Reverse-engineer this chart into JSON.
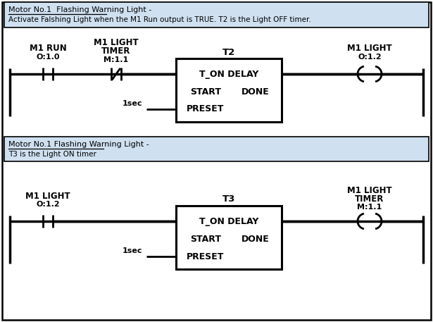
{
  "bg_color": "#ffffff",
  "outer_border_color": "#000000",
  "rung_bg": "#cfe0f0",
  "rung1": {
    "title_line1": "Motor No.1  Flashing Warning Light -",
    "title_line2": "Activate Falshing Light when the M1 Run output is TRUE. T2 is the Light OFF timer.",
    "contact1_top": "M1 RUN",
    "contact1_addr": "O:1.0",
    "contact2_top1": "M1 LIGHT",
    "contact2_top2": "TIMER",
    "contact2_addr": "M:1.1",
    "timer_name": "T2",
    "timer_line1": "T_ON DELAY",
    "timer_line2_left": "START",
    "timer_line2_right": "DONE",
    "timer_line3": "PRESET",
    "preset_label": "1sec",
    "output_top": "M1 LIGHT",
    "output_addr": "O:1.2"
  },
  "rung2": {
    "title_line1": "Motor No.1 Flashing Warning Light -",
    "title_line2": "T3 is the Light ON timer",
    "contact1_top": "M1 LIGHT",
    "contact1_addr": "O:1.2",
    "timer_name": "T3",
    "timer_line1": "T_ON DELAY",
    "timer_line2_left": "START",
    "timer_line2_right": "DONE",
    "timer_line3": "PRESET",
    "preset_label": "1sec",
    "output_top1": "M1 LIGHT",
    "output_top2": "TIMER",
    "output_addr": "M:1.1"
  },
  "font_bold_size": 8.5,
  "font_addr_size": 8.0,
  "font_timer_size": 9.0,
  "font_title_size": 8.0,
  "font_preset_size": 8.0
}
